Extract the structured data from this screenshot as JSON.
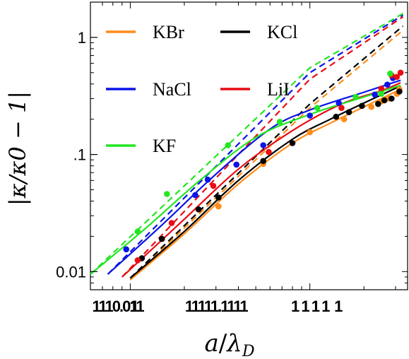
{
  "chart_data": {
    "type": "line",
    "log_x": true,
    "log_y": true,
    "xlabel": "a/λ_D",
    "ylabel": "|κ/κ₀ − 1|",
    "xlabel_parts": {
      "a": "a",
      "slash": "/",
      "lambda": "λ",
      "sub": "D"
    },
    "ylabel_text": "|κ/κ0 − 1|",
    "xlim": [
      0.06,
      3.5
    ],
    "ylim": [
      0.007,
      2.0
    ],
    "y_ticks": [
      {
        "value": 0.01,
        "label": "0.01"
      },
      {
        "value": 0.1,
        "label": ".1"
      },
      {
        "value": 1,
        "label": "1"
      }
    ],
    "x_tick_text_groups": [
      {
        "x": 0.085,
        "label": "1110.011"
      },
      {
        "x": 0.105,
        "label": "1"
      },
      {
        "x": 0.3,
        "label": "11111.1111"
      },
      {
        "x": 1.0,
        "label": "1  1  1  1"
      },
      {
        "x": 1.43,
        "label": "1"
      }
    ],
    "grid": false,
    "legend_position": "top-left",
    "series": [
      {
        "name": "KBr",
        "color": "#ff8c1a",
        "points": [
          [
            0.31,
            0.036
          ],
          [
            0.55,
            0.083
          ],
          [
            1.0,
            0.155
          ],
          [
            1.55,
            0.2
          ],
          [
            2.2,
            0.255
          ],
          [
            2.5,
            0.285
          ],
          [
            2.75,
            0.3
          ],
          [
            3.05,
            0.33
          ],
          [
            3.15,
            0.36
          ]
        ],
        "theory": [
          [
            0.1,
            0.0085
          ],
          [
            0.2,
            0.021
          ],
          [
            0.4,
            0.056
          ],
          [
            0.8,
            0.125
          ],
          [
            1.3,
            0.185
          ],
          [
            2.0,
            0.255
          ],
          [
            3.2,
            0.36
          ]
        ],
        "asymptote": [
          [
            0.1,
            0.0085
          ],
          [
            1.0,
            0.25
          ],
          [
            3.3,
            1.15
          ]
        ]
      },
      {
        "name": "KCl",
        "color": "#000000",
        "points": [
          [
            0.116,
            0.013
          ],
          [
            0.15,
            0.019
          ],
          [
            0.24,
            0.034
          ],
          [
            0.31,
            0.043
          ],
          [
            0.55,
            0.088
          ],
          [
            0.8,
            0.125
          ],
          [
            1.4,
            0.21
          ],
          [
            1.65,
            0.23
          ],
          [
            1.95,
            0.26
          ],
          [
            2.4,
            0.27
          ],
          [
            2.6,
            0.29
          ],
          [
            2.85,
            0.3
          ],
          [
            3.15,
            0.345
          ]
        ],
        "theory": [
          [
            0.1,
            0.0088
          ],
          [
            0.2,
            0.022
          ],
          [
            0.4,
            0.06
          ],
          [
            0.8,
            0.135
          ],
          [
            1.3,
            0.2
          ],
          [
            2.0,
            0.275
          ],
          [
            3.2,
            0.385
          ]
        ],
        "asymptote": [
          [
            0.1,
            0.0088
          ],
          [
            1.0,
            0.27
          ],
          [
            3.3,
            1.25
          ]
        ]
      },
      {
        "name": "NaCl",
        "color": "#0a14e6",
        "points": [
          [
            0.095,
            0.0155
          ],
          [
            0.23,
            0.045
          ],
          [
            0.27,
            0.061
          ],
          [
            0.39,
            0.082
          ],
          [
            0.55,
            0.12
          ],
          [
            1.0,
            0.215
          ],
          [
            1.45,
            0.275
          ],
          [
            2.3,
            0.325
          ],
          [
            2.7,
            0.395
          ],
          [
            2.9,
            0.45
          ]
        ],
        "theory": [
          [
            0.075,
            0.0095
          ],
          [
            0.15,
            0.025
          ],
          [
            0.3,
            0.068
          ],
          [
            0.6,
            0.165
          ],
          [
            1.0,
            0.24
          ],
          [
            2.0,
            0.34
          ],
          [
            3.2,
            0.43
          ]
        ],
        "asymptote": [
          [
            0.075,
            0.0095
          ],
          [
            1.0,
            0.5
          ],
          [
            3.3,
            1.55
          ]
        ]
      },
      {
        "name": "LiI",
        "color": "#e80c14",
        "points": [
          [
            0.11,
            0.0125
          ],
          [
            0.17,
            0.026
          ],
          [
            0.29,
            0.054
          ],
          [
            0.59,
            0.105
          ],
          [
            1.5,
            0.25
          ],
          [
            2.5,
            0.365
          ],
          [
            2.85,
            0.475
          ],
          [
            3.05,
            0.46
          ],
          [
            3.2,
            0.5
          ]
        ],
        "theory": [
          [
            0.09,
            0.009
          ],
          [
            0.2,
            0.028
          ],
          [
            0.4,
            0.075
          ],
          [
            0.8,
            0.16
          ],
          [
            1.5,
            0.27
          ],
          [
            2.5,
            0.35
          ],
          [
            3.2,
            0.41
          ]
        ],
        "asymptote": [
          [
            0.09,
            0.009
          ],
          [
            1.0,
            0.44
          ],
          [
            3.3,
            1.5
          ]
        ]
      },
      {
        "name": "KF",
        "color": "#22e622",
        "points": [
          [
            0.11,
            0.022
          ],
          [
            0.16,
            0.046
          ],
          [
            0.35,
            0.12
          ],
          [
            0.68,
            0.19
          ],
          [
            1.1,
            0.25
          ],
          [
            1.8,
            0.31
          ],
          [
            2.5,
            0.33
          ],
          [
            2.8,
            0.49
          ]
        ],
        "theory": [
          [
            0.06,
            0.0095
          ],
          [
            0.12,
            0.023
          ],
          [
            0.25,
            0.062
          ],
          [
            0.5,
            0.14
          ],
          [
            1.0,
            0.22
          ],
          [
            2.0,
            0.31
          ],
          [
            3.2,
            0.39
          ]
        ],
        "asymptote": [
          [
            0.06,
            0.0095
          ],
          [
            1.0,
            0.55
          ],
          [
            3.3,
            1.6
          ]
        ]
      }
    ]
  }
}
